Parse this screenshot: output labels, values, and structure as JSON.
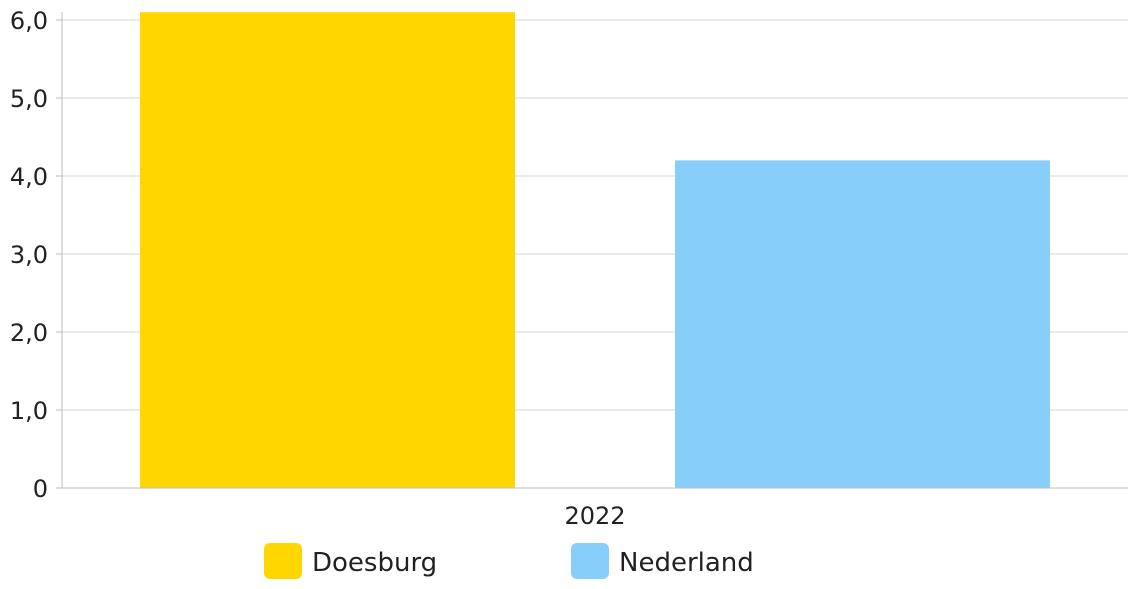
{
  "colors": {
    "Doesburg": "#FFD700",
    "Nederland": "#87CEFA",
    "gridline": "#d4d4d4",
    "axis": "#bdbdbd",
    "text": "#222222"
  },
  "chart_data": {
    "type": "bar",
    "categories": [
      "2022"
    ],
    "series": [
      {
        "name": "Doesburg",
        "values": [
          6.1
        ]
      },
      {
        "name": "Nederland",
        "values": [
          4.2
        ]
      }
    ],
    "ylim": [
      0,
      6
    ],
    "yticks": [
      0,
      1,
      2,
      3,
      4,
      5,
      6
    ],
    "ytick_labels": [
      "0",
      "1,0",
      "2,0",
      "3,0",
      "4,0",
      "5,0",
      "6,0"
    ],
    "grid": true,
    "legend_position": "bottom"
  }
}
